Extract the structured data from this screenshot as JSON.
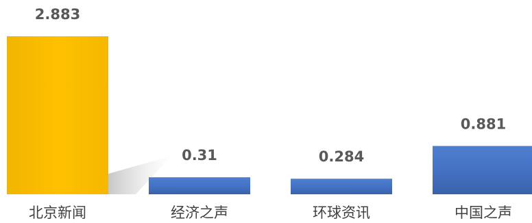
{
  "chart_data": {
    "type": "bar",
    "categories": [
      "北京新闻",
      "经济之声",
      "环球资讯",
      "中国之声"
    ],
    "values": [
      2.883,
      0.31,
      0.284,
      0.881
    ],
    "value_labels": [
      "2.883",
      "0.31",
      "0.284",
      "0.881"
    ],
    "title": "",
    "xlabel": "",
    "ylabel": "",
    "ylim": [
      0,
      2.883
    ],
    "grid": false,
    "legend": "none",
    "colors": {
      "highlight": "#FFC000",
      "default": "#4472C4",
      "label": "#595959",
      "category_label": "#404040"
    },
    "highlight_index": 0
  }
}
